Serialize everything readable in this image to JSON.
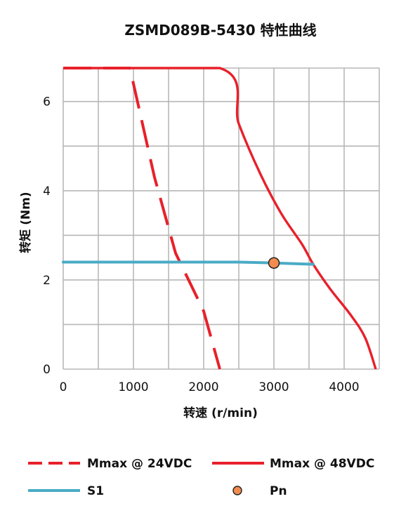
{
  "chart_data": {
    "type": "line",
    "title": "ZSMD089B-5430 特性曲线",
    "xlabel": "转速 (r/min)",
    "ylabel": "转矩 (Nm)",
    "xlim": [
      0,
      4500
    ],
    "ylim": [
      0,
      6.75
    ],
    "x_ticks": [
      0,
      1000,
      2000,
      3000,
      4000
    ],
    "y_ticks": [
      0,
      2,
      4,
      6
    ],
    "x_tick_labels": [
      "0",
      "1000",
      "2000",
      "3000",
      "4000"
    ],
    "y_tick_labels": [
      "0",
      "2",
      "4",
      "6"
    ],
    "grid": true,
    "legend_position": "bottom",
    "series": [
      {
        "name": "Mmax @ 24VDC",
        "style": "dashed",
        "color": "#e8202a",
        "points": [
          [
            0,
            6.75
          ],
          [
            950,
            6.75
          ],
          [
            1300,
            4.3
          ],
          [
            1600,
            2.6
          ],
          [
            2000,
            1.3
          ],
          [
            2230,
            0
          ]
        ]
      },
      {
        "name": "Mmax @ 48VDC",
        "style": "solid",
        "color": "#e8202a",
        "points": [
          [
            0,
            6.75
          ],
          [
            2230,
            6.75
          ],
          [
            2500,
            5.5
          ],
          [
            2800,
            4.4
          ],
          [
            3100,
            3.5
          ],
          [
            3400,
            2.8
          ],
          [
            3560,
            2.35
          ],
          [
            3800,
            1.8
          ],
          [
            4100,
            1.2
          ],
          [
            4300,
            0.7
          ],
          [
            4450,
            0
          ]
        ]
      },
      {
        "name": "S1",
        "style": "solid",
        "color": "#4aabc6",
        "points": [
          [
            0,
            2.4
          ],
          [
            1000,
            2.4
          ],
          [
            2000,
            2.4
          ],
          [
            2500,
            2.4
          ],
          [
            3000,
            2.38
          ],
          [
            3560,
            2.35
          ]
        ]
      },
      {
        "name": "Pn",
        "style": "marker",
        "color": "#f28c4e",
        "points": [
          [
            3000,
            2.38
          ]
        ]
      }
    ]
  }
}
